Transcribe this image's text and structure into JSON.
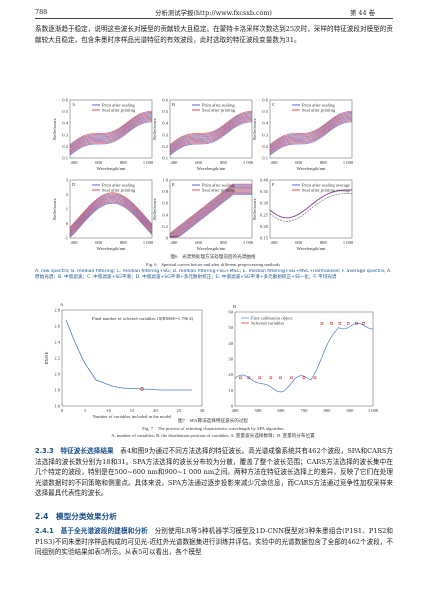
{
  "header": {
    "page": "788",
    "journal": "分析测试学报(http://www.fxcsxb.com)",
    "volume": "第 44 卷"
  },
  "paragraph1": "系数逐渐趋于稳定，说明这些波长对模型的贡献较大且稳定。在蒙特卡洛采样次数达到25次时，采样的特征波段对模型的贡献较大且稳定，包含朱墨时序样品光谱特征的有效波段，此时选取的特征波段变量数为31。",
  "figure6": {
    "panels": [
      {
        "label": "A",
        "legend": [
          "Print after sealing",
          "Seal after printing"
        ],
        "yticks": [
          "0.1",
          "0.2",
          "0.3",
          "0.4",
          "0.5",
          "0.6"
        ]
      },
      {
        "label": "B",
        "legend": [
          "Print after sealing",
          "Seal after printing"
        ],
        "yticks": [
          "0.1",
          "0.2",
          "0.3",
          "0.4",
          "0.5",
          "0.6"
        ]
      },
      {
        "label": "C",
        "legend": [
          "Print after sealing",
          "Seal after printing"
        ],
        "yticks": [
          "0.1",
          "0.2",
          "0.3",
          "0.4",
          "0.5",
          "0.6"
        ]
      },
      {
        "label": "D",
        "legend": [
          "Print after sealing",
          "Seal after printing"
        ],
        "yticks": [
          "-1",
          "0",
          "1",
          "2",
          "3"
        ]
      },
      {
        "label": "E",
        "legend": [
          "Print after sealing",
          "Seal after printing"
        ],
        "yticks": [
          "0",
          "0.2",
          "0.4",
          "0.6",
          "0.8",
          "1.0"
        ]
      },
      {
        "label": "F",
        "legend": [
          "Print after sealing average",
          "Seal after printing average"
        ],
        "yticks": [
          "0.15",
          "0.20",
          "0.25",
          "0.30",
          "0.35",
          "0.40"
        ]
      }
    ],
    "y_label": "Reflectance",
    "x_label": "Wavelength/nm",
    "xticks": [
      "400",
      "600",
      "800",
      "1 000"
    ],
    "caption_cn": "图6　光谱预处理方法处理前后的光谱曲线",
    "caption_en": "Fig. 6　Spectral curves before and after different preprocessing methods",
    "note_en": "A. raw spectra; B. median filtering; C. median filtering+SG; D. median filtering+SG+MSC; E. median filtering+SG+MSC+normalized; F. average spectra; A. 原始光谱；B. 中值滤波；C. 中值滤波+SG平滑；D. 中值滤波+SG平滑+多元散射校正；E. 中值滤波+SG平滑+多元散射校正+归一化；F. 平均光谱"
  },
  "figure7": {
    "panel_a": {
      "label": "A",
      "annotation": "Final number of selected variables:18(RMSE=1.796 4)",
      "y_label": "RMSE",
      "x_label": "Number of variables included in the model",
      "yticks": [
        "1.6",
        "1.8",
        "2.0",
        "2.2",
        "2.4",
        "2.6",
        "2.8"
      ],
      "xticks": [
        "0",
        "5",
        "10",
        "15",
        "20",
        "25",
        "30"
      ]
    },
    "panel_b": {
      "label": "B",
      "legend": [
        "First calibration object",
        "Selected variables"
      ],
      "yticks": [
        "0",
        "10",
        "20",
        "30",
        "40",
        "50",
        "60"
      ],
      "xticks": [
        "400",
        "500",
        "600",
        "700",
        "800",
        "900",
        "1 000"
      ]
    },
    "caption_cn": "图7　SPA算法选择特征波长的过程",
    "caption_en": "Fig. 7　The process of selecting characteristic wavelength by SPA algorithm",
    "note": "A. number of variables; B. the distribution position of variables; A. 变量波长选择数目；B. 变量的分布位置"
  },
  "section_233": {
    "heading": "2.3.3　特征波长选择结果",
    "text": "表4和图9为通过不同方法选择的特征波长。高光谱成像系统共有462个波段，SPA和CARS方法选择的波长数分别为18和31。SPA方法选择的波长分布较为分散，覆盖了整个波长范围；CARS方法选择的波长集中在几个特定的波段，特别是在500~600 nm和900~1 000 nm之间。两种方法在特征波长选择上的差异，反映了它们在处理光谱数据时的不同策略和侧重点。具体来说，SPA方法通过逐步投影来减少冗余信息，而CARS方法通过竞争性加权采样来选择最具代表性的波长。"
  },
  "section_24": {
    "heading": "2.4　模型分类效果分析"
  },
  "section_241": {
    "heading": "2.4.1　基于全光谱波段的建模和分析",
    "text": "分别使用LR等5种机器学习模型及1D-CNN模型对3种朱墨组合(P1S1、P1S2和P1S3)不同朱墨时序样品构成的可见光-近红外光谱数据集进行训练并评估。实验中的光谱数据包含了全部的462个波段，不同组别的实验结果如表5所示。从表5可以看出，各个模型"
  }
}
